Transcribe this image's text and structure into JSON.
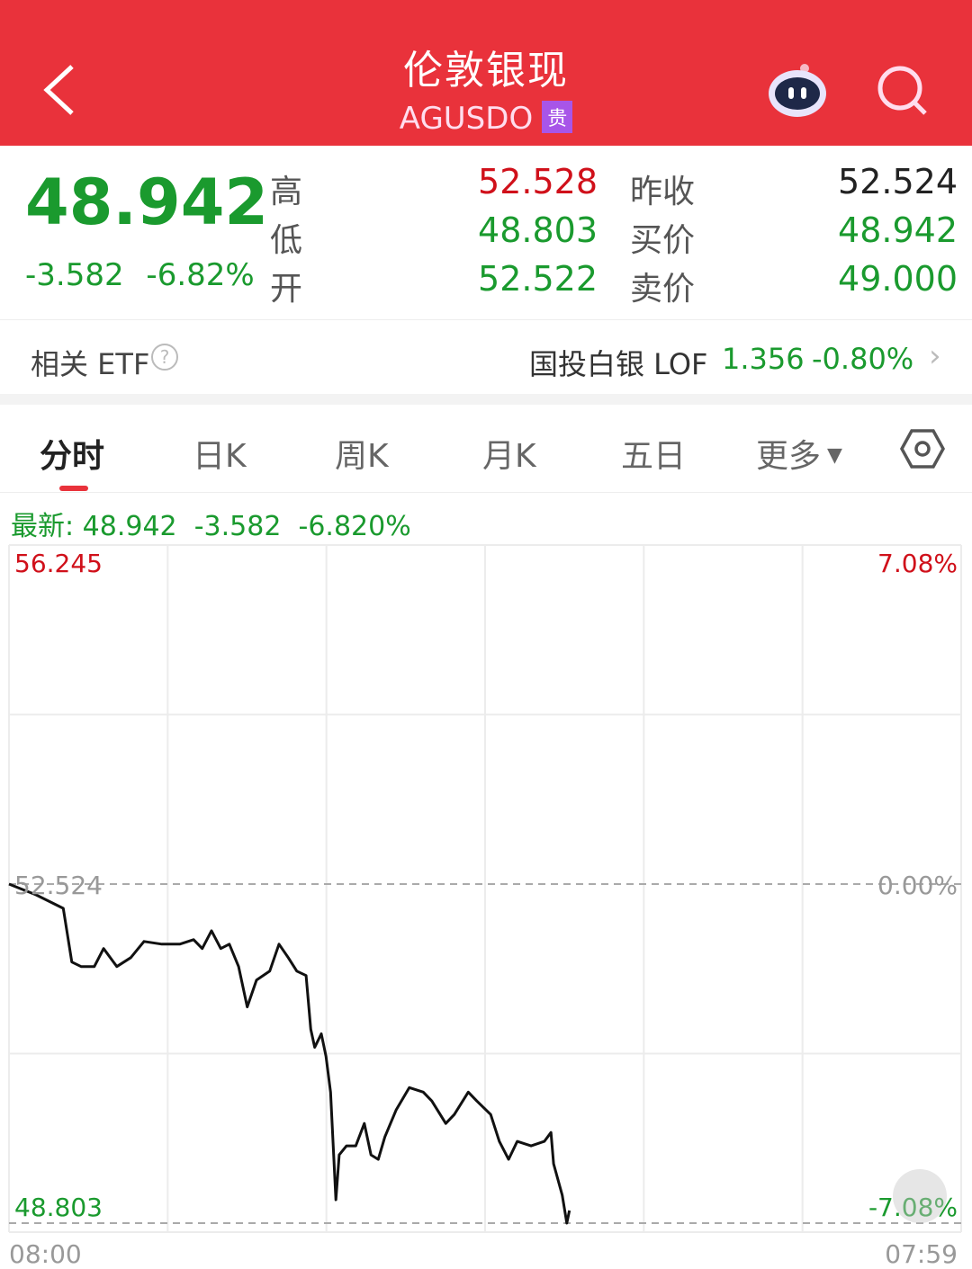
{
  "header": {
    "title": "伦敦银现",
    "code": "AGUSDO",
    "badge": "贵",
    "icons": [
      "back-chevron-icon",
      "robot-assistant-icon",
      "search-icon"
    ]
  },
  "quote": {
    "last": "48.942",
    "change": "-3.582",
    "change_pct": "-6.82%",
    "high_label": "高",
    "high": "52.528",
    "low_label": "低",
    "low": "48.803",
    "open_label": "开",
    "open": "52.522",
    "prev_close_label": "昨收",
    "prev_close": "52.524",
    "bid_label": "买价",
    "bid": "48.942",
    "ask_label": "卖价",
    "ask": "49.000"
  },
  "etf": {
    "label": "相关 ETF",
    "name": "国投白银 LOF",
    "price": "1.356",
    "change_pct": "-0.80%"
  },
  "tabs": [
    {
      "label": "分时",
      "active": true
    },
    {
      "label": "日K"
    },
    {
      "label": "周K"
    },
    {
      "label": "月K"
    },
    {
      "label": "五日"
    },
    {
      "label": "更多"
    }
  ],
  "latest": {
    "label": "最新:",
    "price": "48.942",
    "change": "-3.582",
    "change_pct": "-6.820%"
  },
  "colors": {
    "brand": "#e9323b",
    "down": "#1a9a2e",
    "up": "#d0101a"
  },
  "chart_data": {
    "type": "line",
    "y_max_label": "56.245",
    "y_max_pct": "7.08%",
    "y_mid_label": "52.524",
    "y_mid_pct": "0.00%",
    "y_min_label": "48.803",
    "y_min_pct": "-7.08%",
    "ylim": [
      48.803,
      56.245
    ],
    "x_start": "08:00",
    "x_end": "07:59",
    "grid": true,
    "series": [
      {
        "points": [
          [
            "08:00",
            52.524
          ],
          [
            "08:41",
            52.406
          ],
          [
            "09:08",
            52.308
          ],
          [
            "09:22",
            52.258
          ],
          [
            "09:35",
            51.668
          ],
          [
            "09:49",
            51.619
          ],
          [
            "10:09",
            51.619
          ],
          [
            "10:23",
            51.816
          ],
          [
            "10:43",
            51.619
          ],
          [
            "11:04",
            51.717
          ],
          [
            "11:24",
            51.894
          ],
          [
            "11:51",
            51.865
          ],
          [
            "12:18",
            51.865
          ],
          [
            "12:39",
            51.914
          ],
          [
            "12:52",
            51.816
          ],
          [
            "13:06",
            52.012
          ],
          [
            "13:20",
            51.816
          ],
          [
            "13:33",
            51.865
          ],
          [
            "13:47",
            51.619
          ],
          [
            "14:00",
            51.176
          ],
          [
            "14:14",
            51.471
          ],
          [
            "14:34",
            51.569
          ],
          [
            "14:48",
            51.865
          ],
          [
            "15:02",
            51.717
          ],
          [
            "15:15",
            51.569
          ],
          [
            "15:29",
            51.52
          ],
          [
            "15:36",
            50.93
          ],
          [
            "15:42",
            50.733
          ],
          [
            "15:52",
            50.881
          ],
          [
            "15:59",
            50.635
          ],
          [
            "16:06",
            50.241
          ],
          [
            "16:14",
            49.06
          ],
          [
            "16:19",
            49.552
          ],
          [
            "16:30",
            49.651
          ],
          [
            "16:44",
            49.651
          ],
          [
            "16:57",
            49.897
          ],
          [
            "17:07",
            49.552
          ],
          [
            "17:18",
            49.503
          ],
          [
            "17:28",
            49.749
          ],
          [
            "17:45",
            50.044
          ],
          [
            "18:05",
            50.29
          ],
          [
            "18:26",
            50.241
          ],
          [
            "18:39",
            50.143
          ],
          [
            "19:00",
            49.897
          ],
          [
            "19:13",
            49.995
          ],
          [
            "19:34",
            50.241
          ],
          [
            "19:47",
            50.143
          ],
          [
            "20:08",
            49.995
          ],
          [
            "20:21",
            49.7
          ],
          [
            "20:35",
            49.503
          ],
          [
            "20:48",
            49.7
          ],
          [
            "21:09",
            49.651
          ],
          [
            "21:29",
            49.7
          ],
          [
            "21:39",
            49.798
          ],
          [
            "21:43",
            49.454
          ],
          [
            "21:56",
            49.11
          ],
          [
            "22:03",
            48.803
          ],
          [
            "22:07",
            48.942
          ]
        ]
      }
    ]
  }
}
